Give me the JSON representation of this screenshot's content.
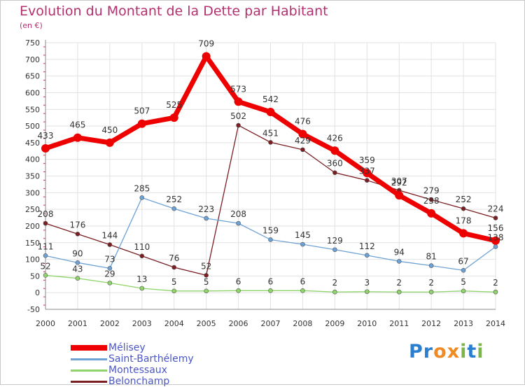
{
  "title": "Evolution du Montant de la Dette par Habitant",
  "subtitle": "(en €)",
  "logo": {
    "letters": [
      "P",
      "r",
      "o",
      "x",
      "i",
      "t",
      "i"
    ],
    "colors": [
      "#2b7fd0",
      "#2b7fd0",
      "#f08a24",
      "#f08a24",
      "#7ab648",
      "#2b7fd0",
      "#7ab648"
    ]
  },
  "chart_data": {
    "type": "line",
    "x": [
      2000,
      2001,
      2002,
      2003,
      2004,
      2005,
      2006,
      2007,
      2008,
      2009,
      2010,
      2011,
      2012,
      2013,
      2014
    ],
    "ylim": [
      -50,
      750
    ],
    "yticks": [
      -50,
      0,
      50,
      100,
      150,
      200,
      250,
      300,
      350,
      400,
      450,
      500,
      550,
      600,
      650,
      700,
      750
    ],
    "grid": true,
    "legend_position": "bottom-left",
    "series": [
      {
        "name": "Belonchamp",
        "color": "#7a1e22",
        "segments": [
          {
            "x": [
              2000,
              2001,
              2002,
              2003,
              2004,
              2005
            ],
            "values": [
              208,
              176,
              144,
              110,
              76,
              52
            ],
            "labels": [
              "208",
              "176",
              "144",
              "110",
              "76",
              "52"
            ]
          },
          {
            "x": [
              2006,
              2007,
              2008,
              2009,
              2010,
              2011,
              2012,
              2013,
              2014
            ],
            "values": [
              502,
              451,
              429,
              360,
              337,
              307,
              279,
              252,
              224
            ],
            "labels": [
              "502",
              "451",
              "429",
              "360",
              "337",
              "307",
              "279",
              "252",
              "224"
            ]
          }
        ],
        "bridge": {
          "x": [
            2005,
            2006
          ],
          "values": [
            52,
            502
          ]
        }
      },
      {
        "name": "Montessaux",
        "color": "#8ed46a",
        "segments": [
          {
            "x": [
              2000,
              2001,
              2002,
              2003,
              2004,
              2005,
              2006,
              2007,
              2008,
              2009,
              2010,
              2011,
              2012,
              2013,
              2014
            ],
            "values": [
              52,
              43,
              29,
              13,
              5,
              5,
              6,
              6,
              6,
              2,
              3,
              2,
              2,
              5,
              2
            ],
            "labels": [
              "52",
              "43",
              "29",
              "13",
              "5",
              "5",
              "6",
              "6",
              "6",
              "2",
              "3",
              "2",
              "2",
              "5",
              "2"
            ]
          }
        ]
      },
      {
        "name": "Saint-Barthélemy",
        "color": "#6ea2d5",
        "segments": [
          {
            "x": [
              2000,
              2001,
              2002,
              2003,
              2004,
              2005,
              2006,
              2007,
              2008,
              2009,
              2010,
              2011,
              2012,
              2013,
              2014
            ],
            "values": [
              111,
              90,
              73,
              285,
              252,
              223,
              208,
              159,
              145,
              129,
              112,
              94,
              81,
              67,
              138
            ],
            "labels": [
              "111",
              "90",
              "73",
              "285",
              "252",
              "223",
              "208",
              "159",
              "145",
              "129",
              "112",
              "94",
              "81",
              "67",
              "138"
            ]
          }
        ]
      },
      {
        "name": "Mélisey",
        "color": "#ee0000",
        "segments": [
          {
            "x": [
              2000,
              2001,
              2002,
              2003,
              2004,
              2005,
              2006,
              2007,
              2008,
              2009,
              2010,
              2011,
              2012,
              2013,
              2014
            ],
            "values": [
              433,
              465,
              450,
              507,
              525,
              709,
              573,
              542,
              476,
              426,
              359,
              292,
              238,
              178,
              156
            ],
            "labels": [
              "433",
              "465",
              "450",
              "507",
              "525",
              "709",
              "573",
              "542",
              "476",
              "426",
              "359",
              "292",
              "238",
              "178",
              "156"
            ]
          }
        ]
      }
    ],
    "legend": [
      {
        "name": "Mélisey",
        "color": "#ee0000"
      },
      {
        "name": "Saint-Barthélemy",
        "color": "#6ea2d5"
      },
      {
        "name": "Montessaux",
        "color": "#8ed46a"
      },
      {
        "name": "Belonchamp",
        "color": "#7a1e22"
      }
    ]
  }
}
